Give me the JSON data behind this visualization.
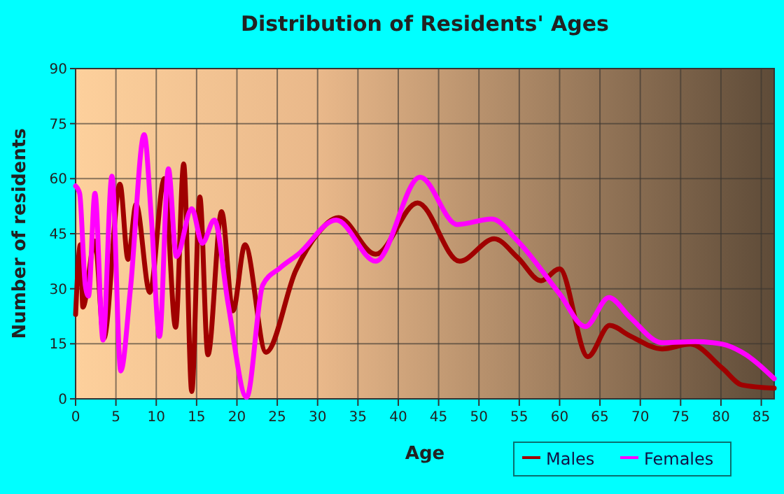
{
  "chart_data": {
    "type": "line",
    "title": "Distribution of Residents' Ages",
    "xlabel": "Age",
    "ylabel": "Number of residents",
    "xlim": [
      0,
      86.6
    ],
    "ylim": [
      0,
      90
    ],
    "xticks": [
      0,
      5,
      10,
      15,
      20,
      25,
      30,
      35,
      40,
      45,
      50,
      55,
      60,
      65,
      70,
      75,
      80,
      85
    ],
    "yticks": [
      0,
      15,
      30,
      45,
      60,
      75,
      90
    ],
    "grid": true,
    "legend": "bottom right",
    "line_style": "solid",
    "marker": "none",
    "series": [
      {
        "name": "Males",
        "color": "#a00000",
        "x": [
          0,
          0.6,
          0.9,
          2.4,
          3.5,
          5.5,
          6.5,
          7.5,
          9.2,
          11,
          12.4,
          13.4,
          14.4,
          15.4,
          16.4,
          18.1,
          19.5,
          21,
          23.6,
          27.3,
          30,
          32.6,
          37.2,
          42.4,
          47.6,
          51.9,
          54.8,
          57.7,
          60,
          63.5,
          66.2,
          68.7,
          72.7,
          76.2,
          80.2,
          82.6,
          86.6
        ],
        "values": [
          23,
          42,
          25,
          43,
          16.5,
          58.5,
          38,
          53,
          29,
          60,
          19.5,
          64,
          2,
          55,
          12,
          51,
          24,
          42,
          12.7,
          35,
          45,
          49.4,
          39.4,
          53.4,
          37.5,
          43.6,
          38.5,
          32.2,
          35.4,
          11.5,
          20,
          17.2,
          13.6,
          14.9,
          8.3,
          3.8,
          2.9
        ]
      },
      {
        "name": "Females",
        "color": "#ff00ff",
        "x": [
          0,
          0.5,
          1.2,
          1.6,
          2.4,
          3.4,
          4.5,
          5.6,
          6.8,
          8.5,
          9.4,
          10.4,
          11.5,
          12.5,
          14.4,
          15.7,
          17.2,
          18.9,
          21.2,
          23.2,
          25.3,
          27.6,
          32.3,
          37.2,
          42.7,
          47.3,
          51.6,
          54.8,
          60,
          63.2,
          66.1,
          68.7,
          72.7,
          76.8,
          80.2,
          82.6,
          86.6
        ],
        "values": [
          58,
          56,
          31,
          28,
          56,
          16,
          60.7,
          7.6,
          30,
          72,
          49,
          17,
          62.7,
          38.8,
          51.8,
          42.4,
          48.7,
          26,
          0.4,
          31,
          35.6,
          39.4,
          48.7,
          37.5,
          60.4,
          47.5,
          49,
          43,
          28.6,
          19.7,
          27.6,
          22.3,
          15.3,
          15.6,
          14.9,
          12.7,
          5.5
        ]
      }
    ]
  }
}
